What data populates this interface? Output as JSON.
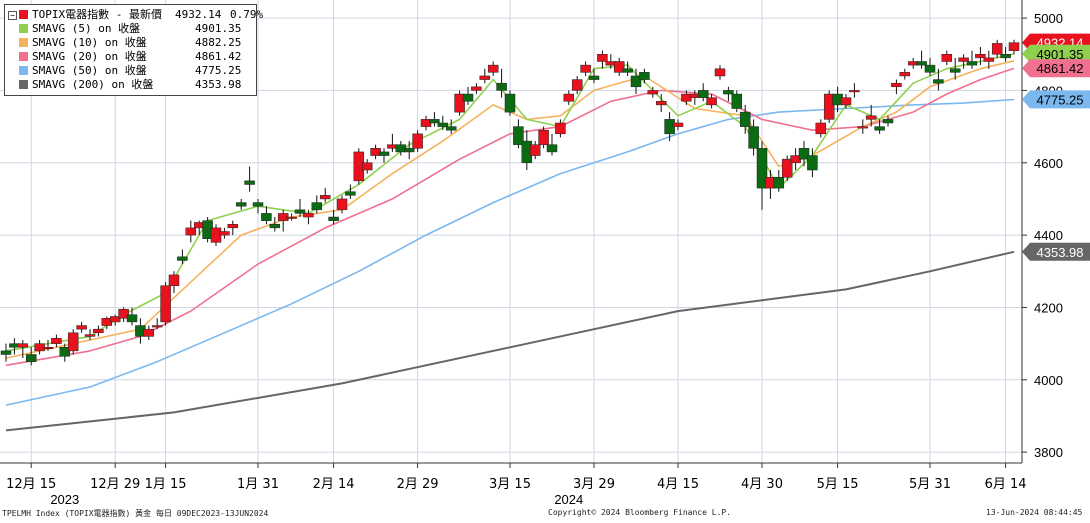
{
  "legend": {
    "title": "TOPIX電器指數 - 最新價",
    "title_value": "4932.14",
    "title_change": "0.79%",
    "entries": [
      {
        "label": "SMAVG (5)  on 收盤",
        "value": "4901.35",
        "color": "#8fd14f"
      },
      {
        "label": "SMAVG (10)  on 收盤",
        "value": "4882.25",
        "color": "#f5b25c"
      },
      {
        "label": "SMAVG (20)  on 收盤",
        "value": "4861.42",
        "color": "#f07090"
      },
      {
        "label": "SMAVG (50)  on 收盤",
        "value": "4775.25",
        "color": "#7ab8ef"
      },
      {
        "label": "SMAVG (200)  on 收盤",
        "value": "4353.98",
        "color": "#666666"
      }
    ]
  },
  "footer": {
    "left": "TPELMH Index (TOPIX電器指數) 黃金  每日 09DEC2023-13JUN2024",
    "center": "Copyright© 2024 Bloomberg Finance L.P.",
    "right": "13-Jun-2024 08:44:45"
  },
  "colors": {
    "up": "#e8121e",
    "down": "#0b6b12",
    "grid": "#cfd6e3"
  },
  "chart_data": {
    "type": "candlestick",
    "ylim": [
      3770,
      5050
    ],
    "yticks": [
      3800,
      4000,
      4200,
      4400,
      4600,
      4800,
      5000
    ],
    "xticks": [
      {
        "label": "12月 15",
        "i": 3
      },
      {
        "label": "12月 29",
        "i": 13
      },
      {
        "label": "1月 15",
        "i": 19
      },
      {
        "label": "1月 31",
        "i": 30
      },
      {
        "label": "2月 14",
        "i": 39
      },
      {
        "label": "2月 29",
        "i": 49
      },
      {
        "label": "3月 15",
        "i": 60
      },
      {
        "label": "3月 29",
        "i": 70
      },
      {
        "label": "4月 15",
        "i": 80
      },
      {
        "label": "4月 30",
        "i": 90
      },
      {
        "label": "5月 15",
        "i": 99
      },
      {
        "label": "5月 31",
        "i": 110
      },
      {
        "label": "6月 14",
        "i": 119
      }
    ],
    "year_labels": [
      {
        "label": "2023",
        "i": 7
      },
      {
        "label": "2024",
        "i": 67
      }
    ],
    "n": 121,
    "candles": [
      [
        0,
        4080,
        4100,
        4050,
        4070
      ],
      [
        1,
        4100,
        4115,
        4070,
        4090
      ],
      [
        2,
        4090,
        4110,
        4060,
        4100
      ],
      [
        3,
        4070,
        4090,
        4040,
        4050
      ],
      [
        4,
        4080,
        4110,
        4070,
        4100
      ],
      [
        5,
        4090,
        4110,
        4080,
        4090
      ],
      [
        6,
        4100,
        4125,
        4090,
        4115
      ],
      [
        7,
        4090,
        4100,
        4050,
        4065
      ],
      [
        8,
        4080,
        4140,
        4070,
        4130
      ],
      [
        9,
        4140,
        4160,
        4130,
        4150
      ],
      [
        10,
        4120,
        4140,
        4110,
        4125
      ],
      [
        11,
        4130,
        4150,
        4120,
        4140
      ],
      [
        12,
        4150,
        4175,
        4140,
        4170
      ],
      [
        13,
        4160,
        4180,
        4150,
        4175
      ],
      [
        14,
        4170,
        4200,
        4160,
        4195
      ],
      [
        15,
        4180,
        4200,
        4150,
        4160
      ],
      [
        16,
        4150,
        4170,
        4100,
        4120
      ],
      [
        17,
        4120,
        4150,
        4110,
        4140
      ],
      [
        18,
        4150,
        4170,
        4140,
        4150
      ],
      [
        19,
        4160,
        4270,
        4150,
        4260
      ],
      [
        20,
        4260,
        4300,
        4240,
        4290
      ],
      [
        21,
        4340,
        4360,
        4320,
        4330
      ],
      [
        22,
        4400,
        4440,
        4380,
        4420
      ],
      [
        23,
        4420,
        4440,
        4400,
        4435
      ],
      [
        24,
        4440,
        4450,
        4380,
        4390
      ],
      [
        25,
        4380,
        4430,
        4370,
        4420
      ],
      [
        26,
        4400,
        4420,
        4390,
        4410
      ],
      [
        27,
        4420,
        4440,
        4400,
        4430
      ],
      [
        28,
        4490,
        4500,
        4470,
        4480
      ],
      [
        29,
        4550,
        4590,
        4520,
        4540
      ],
      [
        30,
        4490,
        4500,
        4460,
        4480
      ],
      [
        31,
        4460,
        4480,
        4430,
        4440
      ],
      [
        32,
        4430,
        4450,
        4410,
        4420
      ],
      [
        33,
        4440,
        4470,
        4410,
        4460
      ],
      [
        34,
        4450,
        4460,
        4440,
        4450
      ],
      [
        35,
        4470,
        4500,
        4450,
        4460
      ],
      [
        36,
        4450,
        4470,
        4430,
        4460
      ],
      [
        37,
        4490,
        4510,
        4460,
        4470
      ],
      [
        38,
        4500,
        4530,
        4490,
        4510
      ],
      [
        39,
        4450,
        4470,
        4430,
        4440
      ],
      [
        40,
        4470,
        4510,
        4460,
        4500
      ],
      [
        41,
        4520,
        4540,
        4500,
        4510
      ],
      [
        42,
        4550,
        4640,
        4540,
        4630
      ],
      [
        43,
        4580,
        4610,
        4570,
        4600
      ],
      [
        44,
        4620,
        4650,
        4610,
        4640
      ],
      [
        45,
        4630,
        4640,
        4600,
        4620
      ],
      [
        46,
        4640,
        4680,
        4630,
        4650
      ],
      [
        47,
        4650,
        4660,
        4620,
        4630
      ],
      [
        48,
        4640,
        4660,
        4610,
        4630
      ],
      [
        49,
        4640,
        4690,
        4630,
        4680
      ],
      [
        50,
        4700,
        4730,
        4690,
        4720
      ],
      [
        51,
        4720,
        4740,
        4700,
        4710
      ],
      [
        52,
        4710,
        4730,
        4690,
        4700
      ],
      [
        53,
        4700,
        4720,
        4680,
        4690
      ],
      [
        54,
        4740,
        4800,
        4730,
        4790
      ],
      [
        55,
        4790,
        4810,
        4760,
        4770
      ],
      [
        56,
        4800,
        4820,
        4790,
        4810
      ],
      [
        57,
        4830,
        4860,
        4820,
        4840
      ],
      [
        58,
        4850,
        4880,
        4840,
        4870
      ],
      [
        59,
        4820,
        4860,
        4780,
        4800
      ],
      [
        60,
        4790,
        4800,
        4730,
        4740
      ],
      [
        61,
        4700,
        4720,
        4640,
        4650
      ],
      [
        62,
        4660,
        4690,
        4580,
        4600
      ],
      [
        63,
        4620,
        4660,
        4610,
        4650
      ],
      [
        64,
        4650,
        4700,
        4640,
        4690
      ],
      [
        65,
        4650,
        4680,
        4620,
        4630
      ],
      [
        66,
        4680,
        4720,
        4670,
        4710
      ],
      [
        67,
        4770,
        4800,
        4760,
        4790
      ],
      [
        68,
        4800,
        4840,
        4790,
        4830
      ],
      [
        69,
        4850,
        4880,
        4840,
        4870
      ],
      [
        70,
        4840,
        4860,
        4820,
        4830
      ],
      [
        71,
        4880,
        4910,
        4860,
        4900
      ],
      [
        72,
        4870,
        4900,
        4860,
        4880
      ],
      [
        73,
        4850,
        4890,
        4840,
        4880
      ],
      [
        74,
        4860,
        4880,
        4840,
        4850
      ],
      [
        75,
        4840,
        4860,
        4790,
        4810
      ],
      [
        76,
        4850,
        4860,
        4820,
        4830
      ],
      [
        77,
        4790,
        4810,
        4780,
        4800
      ],
      [
        78,
        4760,
        4790,
        4740,
        4770
      ],
      [
        79,
        4720,
        4740,
        4660,
        4680
      ],
      [
        80,
        4700,
        4720,
        4690,
        4710
      ],
      [
        81,
        4770,
        4800,
        4760,
        4790
      ],
      [
        82,
        4780,
        4800,
        4760,
        4790
      ],
      [
        83,
        4800,
        4820,
        4770,
        4780
      ],
      [
        84,
        4760,
        4790,
        4750,
        4780
      ],
      [
        85,
        4840,
        4870,
        4830,
        4860
      ],
      [
        86,
        4800,
        4810,
        4770,
        4790
      ],
      [
        87,
        4790,
        4800,
        4740,
        4750
      ],
      [
        88,
        4740,
        4760,
        4680,
        4700
      ],
      [
        89,
        4700,
        4720,
        4620,
        4640
      ],
      [
        90,
        4640,
        4660,
        4470,
        4530
      ],
      [
        91,
        4530,
        4580,
        4500,
        4560
      ],
      [
        92,
        4560,
        4580,
        4520,
        4530
      ],
      [
        93,
        4560,
        4620,
        4550,
        4610
      ],
      [
        94,
        4600,
        4640,
        4580,
        4620
      ],
      [
        95,
        4640,
        4660,
        4590,
        4610
      ],
      [
        96,
        4620,
        4640,
        4560,
        4580
      ],
      [
        97,
        4680,
        4720,
        4670,
        4710
      ],
      [
        98,
        4720,
        4800,
        4710,
        4790
      ],
      [
        99,
        4790,
        4810,
        4740,
        4760
      ],
      [
        100,
        4760,
        4790,
        4750,
        4780
      ],
      [
        101,
        4800,
        4820,
        4780,
        4800
      ],
      [
        102,
        4700,
        4720,
        4680,
        4700
      ],
      [
        103,
        4720,
        4760,
        4700,
        4730
      ],
      [
        104,
        4700,
        4720,
        4680,
        4690
      ],
      [
        105,
        4720,
        4730,
        4700,
        4710
      ],
      [
        106,
        4810,
        4830,
        4790,
        4820
      ],
      [
        107,
        4840,
        4860,
        4830,
        4850
      ],
      [
        108,
        4870,
        4890,
        4860,
        4880
      ],
      [
        109,
        4880,
        4910,
        4860,
        4870
      ],
      [
        110,
        4870,
        4890,
        4840,
        4850
      ],
      [
        111,
        4830,
        4860,
        4800,
        4820
      ],
      [
        112,
        4880,
        4910,
        4870,
        4900
      ],
      [
        113,
        4860,
        4890,
        4830,
        4850
      ],
      [
        114,
        4880,
        4900,
        4860,
        4890
      ],
      [
        115,
        4880,
        4910,
        4860,
        4870
      ],
      [
        116,
        4890,
        4920,
        4870,
        4900
      ],
      [
        117,
        4880,
        4910,
        4860,
        4890
      ],
      [
        118,
        4900,
        4940,
        4890,
        4930
      ],
      [
        119,
        4900,
        4920,
        4880,
        4890
      ],
      [
        120,
        4910,
        4940,
        4900,
        4932
      ]
    ],
    "ma_series": [
      {
        "key": "sma5",
        "color": "#8fd14f",
        "points": [
          [
            0,
            4080
          ],
          [
            10,
            4120
          ],
          [
            14,
            4180
          ],
          [
            19,
            4240
          ],
          [
            24,
            4440
          ],
          [
            30,
            4480
          ],
          [
            36,
            4460
          ],
          [
            42,
            4540
          ],
          [
            48,
            4650
          ],
          [
            54,
            4720
          ],
          [
            58,
            4830
          ],
          [
            62,
            4720
          ],
          [
            66,
            4700
          ],
          [
            70,
            4860
          ],
          [
            74,
            4870
          ],
          [
            80,
            4730
          ],
          [
            84,
            4770
          ],
          [
            88,
            4700
          ],
          [
            92,
            4530
          ],
          [
            96,
            4620
          ],
          [
            100,
            4760
          ],
          [
            104,
            4720
          ],
          [
            108,
            4820
          ],
          [
            112,
            4860
          ],
          [
            116,
            4880
          ],
          [
            120,
            4901
          ]
        ]
      },
      {
        "key": "sma10",
        "color": "#f5b25c",
        "points": [
          [
            0,
            4060
          ],
          [
            10,
            4110
          ],
          [
            16,
            4140
          ],
          [
            22,
            4270
          ],
          [
            28,
            4400
          ],
          [
            34,
            4450
          ],
          [
            40,
            4470
          ],
          [
            46,
            4570
          ],
          [
            52,
            4660
          ],
          [
            58,
            4760
          ],
          [
            62,
            4720
          ],
          [
            66,
            4730
          ],
          [
            70,
            4800
          ],
          [
            76,
            4840
          ],
          [
            82,
            4750
          ],
          [
            88,
            4730
          ],
          [
            92,
            4590
          ],
          [
            96,
            4620
          ],
          [
            102,
            4700
          ],
          [
            106,
            4740
          ],
          [
            110,
            4810
          ],
          [
            116,
            4860
          ],
          [
            120,
            4882
          ]
        ]
      },
      {
        "key": "sma20",
        "color": "#f07090",
        "points": [
          [
            0,
            4040
          ],
          [
            10,
            4080
          ],
          [
            16,
            4120
          ],
          [
            22,
            4190
          ],
          [
            30,
            4320
          ],
          [
            38,
            4420
          ],
          [
            46,
            4500
          ],
          [
            54,
            4610
          ],
          [
            60,
            4680
          ],
          [
            66,
            4700
          ],
          [
            72,
            4770
          ],
          [
            78,
            4800
          ],
          [
            84,
            4790
          ],
          [
            90,
            4720
          ],
          [
            96,
            4690
          ],
          [
            102,
            4700
          ],
          [
            108,
            4740
          ],
          [
            112,
            4790
          ],
          [
            116,
            4830
          ],
          [
            120,
            4861
          ]
        ]
      },
      {
        "key": "sma50",
        "color": "#7ab8ef",
        "points": [
          [
            0,
            3930
          ],
          [
            10,
            3980
          ],
          [
            18,
            4050
          ],
          [
            26,
            4130
          ],
          [
            34,
            4210
          ],
          [
            42,
            4300
          ],
          [
            50,
            4400
          ],
          [
            58,
            4490
          ],
          [
            66,
            4570
          ],
          [
            74,
            4630
          ],
          [
            80,
            4680
          ],
          [
            86,
            4720
          ],
          [
            92,
            4740
          ],
          [
            100,
            4750
          ],
          [
            108,
            4760
          ],
          [
            114,
            4765
          ],
          [
            120,
            4775
          ]
        ]
      },
      {
        "key": "sma200",
        "color": "#666666",
        "points": [
          [
            0,
            3860
          ],
          [
            20,
            3910
          ],
          [
            40,
            3990
          ],
          [
            60,
            4090
          ],
          [
            80,
            4190
          ],
          [
            100,
            4250
          ],
          [
            110,
            4300
          ],
          [
            120,
            4354
          ]
        ]
      }
    ],
    "last_labels": [
      {
        "text": "4932.14",
        "value": 4932.14,
        "bg": "#e8121e",
        "fg": "#ffffff"
      },
      {
        "text": "4901.35",
        "value": 4901.35,
        "bg": "#8fd14f",
        "fg": "#000000"
      },
      {
        "text": "4861.42",
        "value": 4861.42,
        "bg": "#f07090",
        "fg": "#000000"
      },
      {
        "text": "4775.25",
        "value": 4775.25,
        "bg": "#7ab8ef",
        "fg": "#000000"
      },
      {
        "text": "4353.98",
        "value": 4353.98,
        "bg": "#666666",
        "fg": "#ffffff"
      }
    ]
  }
}
